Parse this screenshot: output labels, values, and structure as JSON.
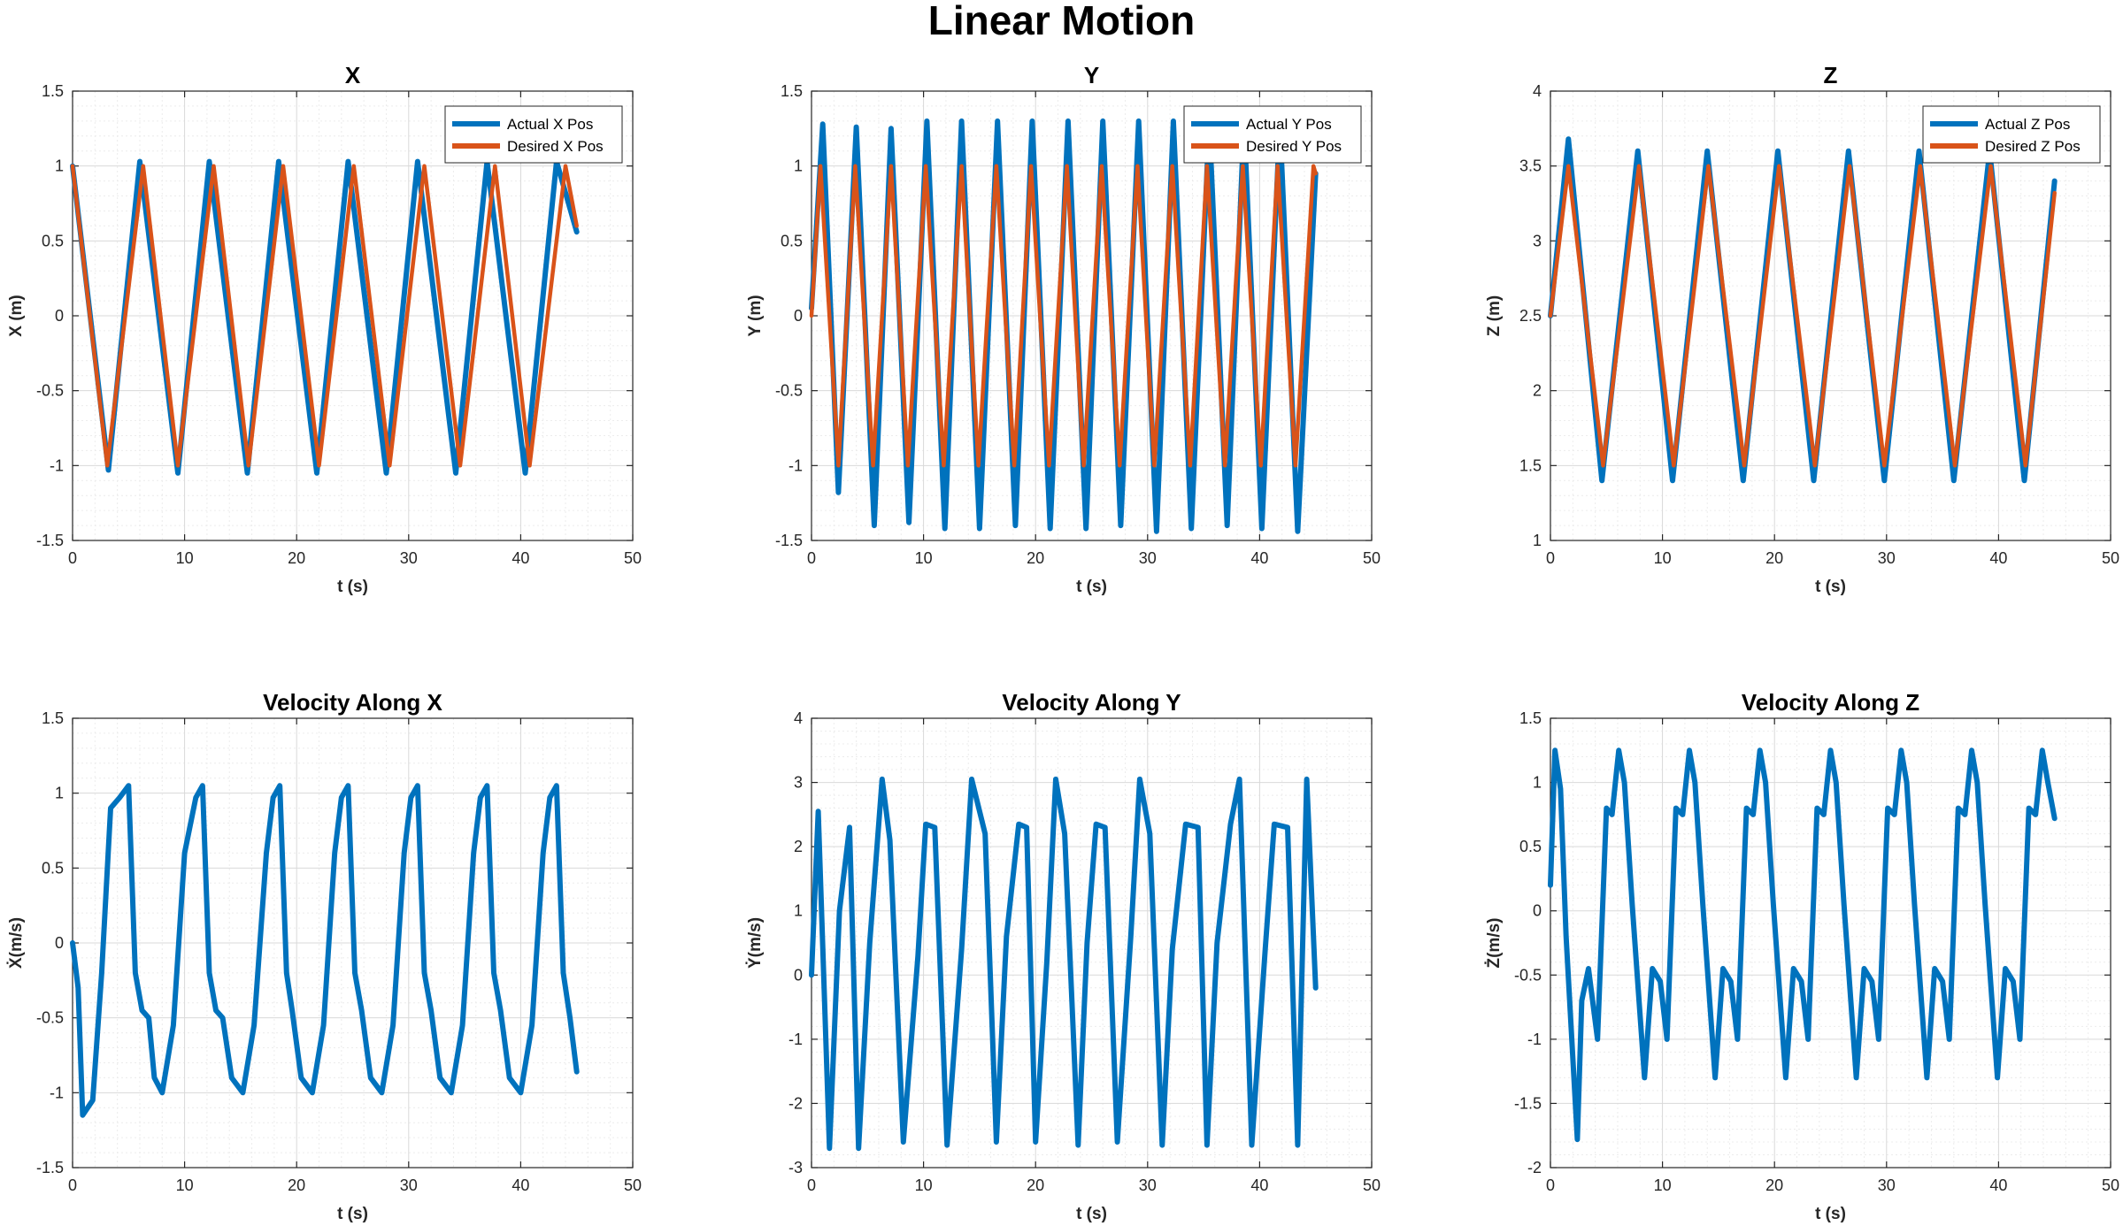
{
  "figure": {
    "title": "Linear Motion"
  },
  "colors": {
    "actual": "#0072BD",
    "desired": "#D95319",
    "grid_minor": "#ececec",
    "grid_major": "#d9d9d9",
    "axis": "#262626"
  },
  "chart_data": [
    {
      "type": "line",
      "title": "X",
      "xlabel": "t (s)",
      "ylabel": "X (m)",
      "xlim": [
        0,
        50
      ],
      "ylim": [
        -1.5,
        1.5
      ],
      "xticks": [
        0,
        10,
        20,
        30,
        40,
        50
      ],
      "yticks": [
        -1.5,
        -1,
        -0.5,
        0,
        0.5,
        1,
        1.5
      ],
      "yticklabels": [
        "-1.5",
        "-1",
        "-0.5",
        "0",
        "0.5",
        "1",
        "1.5"
      ],
      "grid": "on (major and minor)",
      "legend": "top-right",
      "series": [
        {
          "name": "Actual X Pos",
          "color": "#0072BD",
          "x": [
            0,
            3.2,
            6.0,
            9.4,
            12.2,
            15.6,
            18.4,
            21.8,
            24.6,
            28.0,
            30.8,
            34.2,
            37.0,
            40.4,
            43.2,
            45.0
          ],
          "y": [
            1.0,
            -1.03,
            1.03,
            -1.05,
            1.03,
            -1.05,
            1.03,
            -1.05,
            1.03,
            -1.05,
            1.03,
            -1.05,
            1.03,
            -1.05,
            1.03,
            0.56
          ]
        },
        {
          "name": "Desired X Pos",
          "color": "#D95319",
          "x": [
            0,
            3.1,
            6.3,
            9.4,
            12.6,
            15.7,
            18.8,
            22.0,
            25.1,
            28.3,
            31.4,
            34.6,
            37.7,
            40.8,
            44.0,
            45.0
          ],
          "y": [
            1.0,
            -1.0,
            1.0,
            -1.0,
            1.0,
            -1.0,
            1.0,
            -1.0,
            1.0,
            -1.0,
            1.0,
            -1.0,
            1.0,
            -1.0,
            1.0,
            0.6
          ]
        }
      ]
    },
    {
      "type": "line",
      "title": "Y",
      "xlabel": "t (s)",
      "ylabel": "Y (m)",
      "xlim": [
        0,
        50
      ],
      "ylim": [
        -1.5,
        1.5
      ],
      "xticks": [
        0,
        10,
        20,
        30,
        40,
        50
      ],
      "yticks": [
        -1.5,
        -1,
        -0.5,
        0,
        0.5,
        1,
        1.5
      ],
      "yticklabels": [
        "-1.5",
        "-1",
        "-0.5",
        "0",
        "0.5",
        "1",
        "1.5"
      ],
      "grid": "on (major and minor)",
      "legend": "top-right",
      "series": [
        {
          "name": "Actual Y Pos",
          "color": "#0072BD",
          "x": [
            0,
            1.0,
            2.4,
            4.0,
            5.6,
            7.1,
            8.7,
            10.3,
            11.9,
            13.4,
            15.0,
            16.6,
            18.2,
            19.7,
            21.3,
            22.9,
            24.5,
            26.0,
            27.6,
            29.2,
            30.8,
            32.3,
            33.9,
            35.5,
            37.1,
            38.6,
            40.2,
            41.8,
            43.4,
            45.0
          ],
          "y": [
            0.05,
            1.28,
            -1.18,
            1.26,
            -1.4,
            1.25,
            -1.38,
            1.3,
            -1.42,
            1.3,
            -1.42,
            1.3,
            -1.4,
            1.3,
            -1.42,
            1.3,
            -1.42,
            1.3,
            -1.4,
            1.3,
            -1.44,
            1.3,
            -1.42,
            1.3,
            -1.4,
            1.3,
            -1.42,
            1.3,
            -1.44,
            0.95
          ]
        },
        {
          "name": "Desired Y Pos",
          "color": "#D95319",
          "x": [
            0,
            0.8,
            2.4,
            3.9,
            5.5,
            7.1,
            8.6,
            10.2,
            11.8,
            13.4,
            14.9,
            16.5,
            18.1,
            19.6,
            21.2,
            22.8,
            24.3,
            25.9,
            27.5,
            29.1,
            30.6,
            32.2,
            33.8,
            35.3,
            36.9,
            38.5,
            40.1,
            41.6,
            43.2,
            44.8,
            45.0
          ],
          "y": [
            0.0,
            1.0,
            -1.0,
            1.0,
            -1.0,
            1.0,
            -1.0,
            1.0,
            -1.0,
            1.0,
            -1.0,
            1.0,
            -1.0,
            1.0,
            -1.0,
            1.0,
            -1.0,
            1.0,
            -1.0,
            1.0,
            -1.0,
            1.0,
            -1.0,
            1.0,
            -1.0,
            1.0,
            -1.0,
            1.0,
            -1.0,
            1.0,
            0.95
          ]
        }
      ]
    },
    {
      "type": "line",
      "title": "Z",
      "xlabel": "t (s)",
      "ylabel": "Z (m)",
      "xlim": [
        0,
        50
      ],
      "ylim": [
        1,
        4
      ],
      "xticks": [
        0,
        10,
        20,
        30,
        40,
        50
      ],
      "yticks": [
        1,
        1.5,
        2,
        2.5,
        3,
        3.5,
        4
      ],
      "yticklabels": [
        "1",
        "1.5",
        "2",
        "2.5",
        "3",
        "3.5",
        "4"
      ],
      "grid": "on (major and minor)",
      "legend": "top-right",
      "series": [
        {
          "name": "Actual Z Pos",
          "color": "#0072BD",
          "x": [
            0,
            1.6,
            4.6,
            7.8,
            10.9,
            14.0,
            17.2,
            20.3,
            23.5,
            26.6,
            29.8,
            32.9,
            36.0,
            39.2,
            42.3,
            45.0
          ],
          "y": [
            2.5,
            3.68,
            1.4,
            3.6,
            1.4,
            3.6,
            1.4,
            3.6,
            1.4,
            3.6,
            1.4,
            3.6,
            1.4,
            3.6,
            1.4,
            3.4
          ]
        },
        {
          "name": "Desired Z Pos",
          "color": "#D95319",
          "x": [
            0,
            1.6,
            4.7,
            7.9,
            11.0,
            14.1,
            17.3,
            20.4,
            23.6,
            26.7,
            29.8,
            33.0,
            36.1,
            39.3,
            42.4,
            45.0
          ],
          "y": [
            2.5,
            3.5,
            1.5,
            3.5,
            1.5,
            3.5,
            1.5,
            3.5,
            1.5,
            3.5,
            1.5,
            3.5,
            1.5,
            3.5,
            1.5,
            3.32
          ]
        }
      ]
    },
    {
      "type": "line",
      "title": "Velocity Along X",
      "xlabel": "t (s)",
      "ylabel": "Ẋ(m/s)",
      "xlim": [
        0,
        50
      ],
      "ylim": [
        -1.5,
        1.5
      ],
      "xticks": [
        0,
        10,
        20,
        30,
        40,
        50
      ],
      "yticks": [
        -1.5,
        -1,
        -0.5,
        0,
        0.5,
        1,
        1.5
      ],
      "yticklabels": [
        "-1.5",
        "-1",
        "-0.5",
        "0",
        "0.5",
        "1",
        "1.5"
      ],
      "grid": "on (major and minor)",
      "series": [
        {
          "color": "#0072BD",
          "x": [
            0,
            0.5,
            0.9,
            1.8,
            2.6,
            3.4,
            4.2,
            5.0,
            5.6,
            6.2,
            6.8,
            7.3,
            8.0,
            9.0,
            10.0,
            11.0,
            11.6,
            12.2,
            12.8,
            13.4,
            14.2,
            15.2,
            16.2,
            17.3,
            17.9,
            18.5,
            19.1,
            19.6,
            20.4,
            21.4,
            22.4,
            23.4,
            24.0,
            24.6,
            25.2,
            25.8,
            26.6,
            27.6,
            28.6,
            29.6,
            30.2,
            30.8,
            31.4,
            32.0,
            32.8,
            33.8,
            34.8,
            35.8,
            36.4,
            37.0,
            37.6,
            38.2,
            39.0,
            40.0,
            41.0,
            42.0,
            42.6,
            43.2,
            43.8,
            44.4,
            45.0
          ],
          "y": [
            0.0,
            -0.3,
            -1.15,
            -1.05,
            -0.2,
            0.9,
            0.97,
            1.05,
            -0.2,
            -0.45,
            -0.5,
            -0.9,
            -1.0,
            -0.55,
            0.6,
            0.97,
            1.05,
            -0.2,
            -0.45,
            -0.5,
            -0.9,
            -1.0,
            -0.55,
            0.6,
            0.97,
            1.05,
            -0.2,
            -0.45,
            -0.9,
            -1.0,
            -0.55,
            0.6,
            0.97,
            1.05,
            -0.2,
            -0.45,
            -0.9,
            -1.0,
            -0.55,
            0.6,
            0.97,
            1.05,
            -0.2,
            -0.45,
            -0.9,
            -1.0,
            -0.55,
            0.6,
            0.97,
            1.05,
            -0.2,
            -0.45,
            -0.9,
            -1.0,
            -0.55,
            0.6,
            0.97,
            1.05,
            -0.2,
            -0.5,
            -0.86
          ]
        }
      ]
    },
    {
      "type": "line",
      "title": "Velocity Along Y",
      "xlabel": "t (s)",
      "ylabel": "Ẏ(m/s)",
      "xlim": [
        0,
        50
      ],
      "ylim": [
        -3,
        4
      ],
      "xticks": [
        0,
        10,
        20,
        30,
        40,
        50
      ],
      "yticks": [
        -3,
        -2,
        -1,
        0,
        1,
        2,
        3,
        4
      ],
      "yticklabels": [
        "-3",
        "-2",
        "-1",
        "0",
        "1",
        "2",
        "3",
        "4"
      ],
      "grid": "on (major and minor)",
      "series": [
        {
          "color": "#0072BD",
          "x": [
            0,
            0.6,
            1.6,
            2.5,
            3.4,
            4.2,
            5.2,
            6.3,
            7.0,
            8.2,
            9.5,
            10.2,
            11.0,
            12.1,
            13.4,
            14.3,
            15.5,
            16.5,
            17.4,
            18.5,
            19.2,
            20.0,
            21.0,
            21.8,
            22.6,
            23.8,
            24.6,
            25.4,
            26.2,
            27.3,
            28.5,
            29.3,
            30.2,
            31.3,
            32.2,
            33.4,
            34.5,
            35.3,
            36.2,
            37.4,
            38.2,
            39.3,
            40.5,
            41.3,
            42.5,
            43.4,
            44.2,
            45.0
          ],
          "y": [
            0.0,
            2.55,
            -2.7,
            1.0,
            2.3,
            -2.7,
            0.5,
            3.05,
            2.1,
            -2.6,
            0.3,
            2.35,
            2.3,
            -2.65,
            0.4,
            3.05,
            2.2,
            -2.6,
            0.6,
            2.35,
            2.3,
            -2.6,
            0.2,
            3.05,
            2.2,
            -2.65,
            0.5,
            2.35,
            2.3,
            -2.6,
            0.6,
            3.05,
            2.2,
            -2.65,
            0.4,
            2.35,
            2.3,
            -2.65,
            0.5,
            2.35,
            3.05,
            -2.65,
            0.4,
            2.35,
            2.3,
            -2.65,
            3.05,
            -0.2
          ]
        }
      ]
    },
    {
      "type": "line",
      "title": "Velocity Along Z",
      "xlabel": "t (s)",
      "ylabel": "Ż(m/s)",
      "xlim": [
        0,
        50
      ],
      "ylim": [
        -2,
        1.5
      ],
      "xticks": [
        0,
        10,
        20,
        30,
        40,
        50
      ],
      "yticks": [
        -2,
        -1.5,
        -1,
        -0.5,
        0,
        0.5,
        1,
        1.5
      ],
      "yticklabels": [
        "-2",
        "-1.5",
        "-1",
        "-0.5",
        "0",
        "0.5",
        "1",
        "1.5"
      ],
      "grid": "on (major and minor)",
      "series": [
        {
          "color": "#0072BD",
          "x": [
            0,
            0.4,
            0.9,
            1.4,
            2.4,
            2.8,
            3.4,
            4.2,
            5.0,
            5.5,
            6.1,
            6.6,
            7.3,
            8.4,
            9.1,
            9.8,
            10.4,
            11.2,
            11.8,
            12.4,
            12.9,
            13.6,
            14.7,
            15.4,
            16.1,
            16.7,
            17.5,
            18.1,
            18.7,
            19.2,
            19.9,
            21.0,
            21.7,
            22.4,
            23.0,
            23.8,
            24.4,
            25.0,
            25.5,
            26.2,
            27.3,
            28.0,
            28.7,
            29.3,
            30.1,
            30.7,
            31.3,
            31.8,
            32.5,
            33.6,
            34.3,
            35.0,
            35.6,
            36.4,
            37.0,
            37.6,
            38.1,
            38.8,
            39.9,
            40.6,
            41.3,
            41.9,
            42.7,
            43.3,
            43.9,
            44.4,
            45.0
          ],
          "y": [
            0.2,
            1.25,
            0.95,
            -0.2,
            -1.78,
            -0.7,
            -0.45,
            -1.0,
            0.8,
            0.75,
            1.25,
            1.0,
            0.05,
            -1.3,
            -0.45,
            -0.55,
            -1.0,
            0.8,
            0.75,
            1.25,
            1.0,
            0.05,
            -1.3,
            -0.45,
            -0.55,
            -1.0,
            0.8,
            0.75,
            1.25,
            1.0,
            0.05,
            -1.3,
            -0.45,
            -0.55,
            -1.0,
            0.8,
            0.75,
            1.25,
            1.0,
            0.05,
            -1.3,
            -0.45,
            -0.55,
            -1.0,
            0.8,
            0.75,
            1.25,
            1.0,
            0.05,
            -1.3,
            -0.45,
            -0.55,
            -1.0,
            0.8,
            0.75,
            1.25,
            1.0,
            0.05,
            -1.3,
            -0.45,
            -0.55,
            -1.0,
            0.8,
            0.75,
            1.25,
            1.0,
            0.72
          ]
        }
      ]
    }
  ]
}
